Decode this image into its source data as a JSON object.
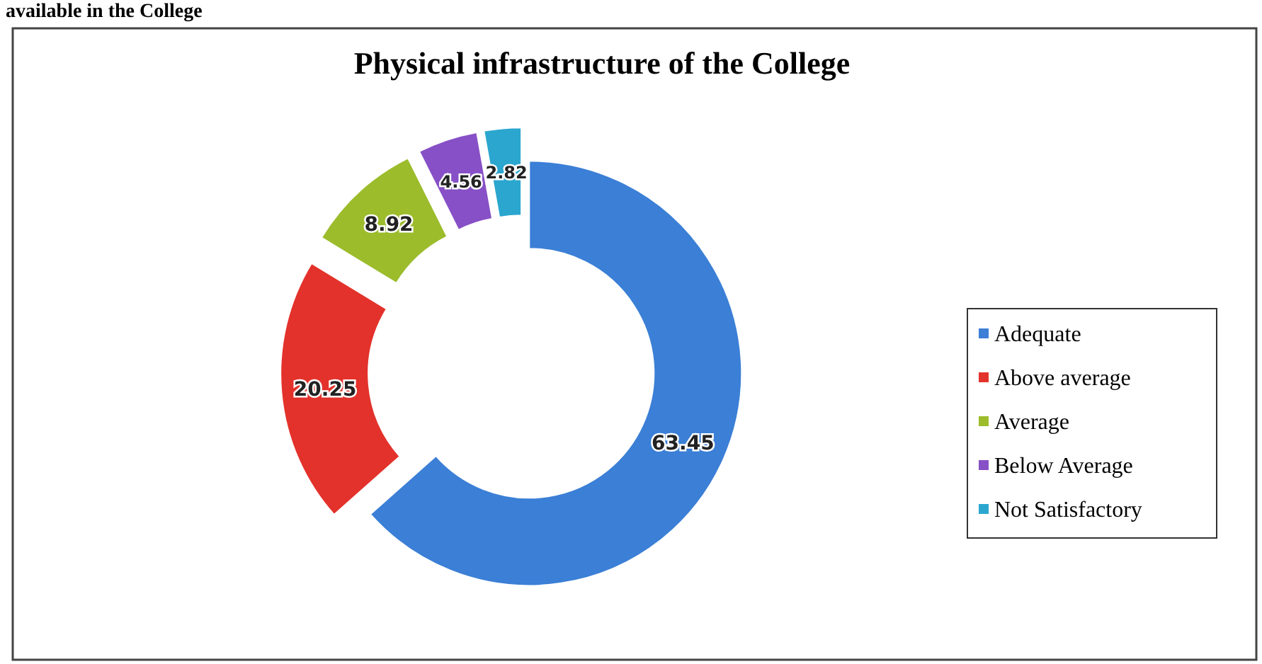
{
  "chart_data": {
    "type": "donut",
    "title": "Physical infrastructure of the College",
    "annotations": [
      "available in the College"
    ],
    "categories": [
      "Adequate",
      "Above average",
      "Average",
      "Below Average",
      "Not Satisfactory"
    ],
    "values": [
      63.45,
      20.25,
      8.92,
      4.56,
      2.82
    ],
    "colors": [
      "#3b7fd6",
      "#e3322b",
      "#9cbc2c",
      "#8750c6",
      "#2ba6cf"
    ],
    "data_labels": true,
    "legend": "right"
  }
}
